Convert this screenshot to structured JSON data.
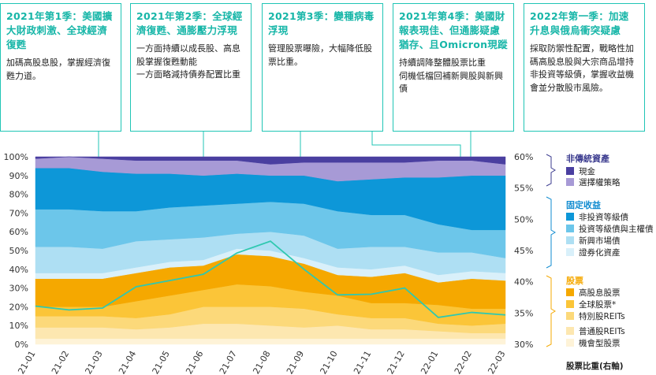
{
  "boxes": [
    {
      "title": "2021年第1季：美國擴大財政刺激、全球經濟復甦",
      "body": "加碼高股息股，掌握經濟復甦力道。"
    },
    {
      "title": "2021年第2季：全球經濟復甦、通膨壓力浮現",
      "body": "一方面持續以成長股、高息股掌握復甦動能\n一方面略減持債券配置比重"
    },
    {
      "title": "2021第3季：變種病毒浮現",
      "body": "管理股票曝險，大幅降低股票比重。"
    },
    {
      "title": "2021年第4季：美國財報表現佳、但通膨疑慮猶存、且Omicron現蹤",
      "body": "持續調降整體股票比重\n伺機低檔回補新興股與新興債"
    },
    {
      "title": "2022年第一季：加速升息與俄烏衝突疑慮",
      "body": "採取防禦性配置，戰略性加碼高股息股與大宗商品增持非投資等級債，掌握收益機會並分散股市風險。"
    }
  ],
  "legend": {
    "groups": [
      {
        "label": "非傳統資產",
        "color": "#3b3b8f",
        "items": [
          {
            "label": "現金",
            "color": "#4a3fa0"
          },
          {
            "label": "選擇權策略",
            "color": "#a79ad6"
          }
        ]
      },
      {
        "label": "固定收益",
        "color": "#0f8bd0",
        "items": [
          {
            "label": "非投資等級債",
            "color": "#0d97d8"
          },
          {
            "label": "投資等級債與主權債",
            "color": "#6cc6ea"
          },
          {
            "label": "新興市場債",
            "color": "#aedff3"
          },
          {
            "label": "證券化資產",
            "color": "#d9f0fa"
          }
        ]
      },
      {
        "label": "股票",
        "color": "#f5a800",
        "items": [
          {
            "label": "高股息股票",
            "color": "#f5a800"
          },
          {
            "label": "全球股票*",
            "color": "#fbc538"
          },
          {
            "label": "特別股REITs",
            "color": "#fcd97a"
          },
          {
            "label": "普通股REITs",
            "color": "#fde7b0"
          },
          {
            "label": "機會型股票",
            "color": "#fef3d8"
          }
        ]
      }
    ],
    "footnote": "股票比重(右軸)"
  },
  "chart_data": {
    "type": "area",
    "stacked": true,
    "categories": [
      "21-01",
      "21-02",
      "21-03",
      "21-04",
      "21-05",
      "21-06",
      "21-07",
      "21-08",
      "21-09",
      "21-10",
      "21-11",
      "21-12",
      "22-01",
      "22-02",
      "22-03"
    ],
    "ylim": [
      0,
      100
    ],
    "yticks": [
      "0%",
      "10%",
      "20%",
      "30%",
      "40%",
      "50%",
      "60%",
      "70%",
      "80%",
      "90%",
      "100%"
    ],
    "series": [
      {
        "name": "機會型股票",
        "color": "#fef3d8",
        "values": [
          3,
          3,
          3,
          3,
          3,
          3,
          3,
          3,
          3,
          3,
          3,
          3,
          3,
          3,
          3
        ]
      },
      {
        "name": "普通股REITs",
        "color": "#fde7b0",
        "values": [
          6,
          6,
          6,
          5,
          6,
          8,
          8,
          7,
          6,
          7,
          5,
          5,
          4,
          3,
          3
        ]
      },
      {
        "name": "特別股REITs",
        "color": "#fcd97a",
        "values": [
          6,
          6,
          6,
          6,
          7,
          9,
          9,
          10,
          10,
          6,
          6,
          6,
          4,
          4,
          5
        ]
      },
      {
        "name": "全球股票*",
        "color": "#fbc538",
        "values": [
          5,
          5,
          5,
          9,
          10,
          9,
          12,
          11,
          9,
          10,
          8,
          8,
          10,
          9,
          8
        ]
      },
      {
        "name": "高股息股票",
        "color": "#f5a800",
        "values": [
          15,
          15,
          15,
          15,
          15,
          13,
          16,
          16,
          15,
          11,
          14,
          16,
          12,
          16,
          15
        ]
      },
      {
        "name": "證券化資產",
        "color": "#d9f0fa",
        "values": [
          3,
          3,
          3,
          3,
          3,
          3,
          3,
          3,
          3,
          4,
          4,
          4,
          4,
          4,
          4
        ]
      },
      {
        "name": "新興市場債",
        "color": "#aedff3",
        "values": [
          14,
          14,
          13,
          14,
          12,
          12,
          8,
          10,
          12,
          10,
          12,
          10,
          12,
          10,
          8
        ]
      },
      {
        "name": "投資等級債與主權債",
        "color": "#6cc6ea",
        "values": [
          20,
          20,
          20,
          16,
          17,
          17,
          16,
          16,
          17,
          20,
          17,
          17,
          15,
          12,
          15
        ]
      },
      {
        "name": "非投資等級債",
        "color": "#0d97d8",
        "values": [
          22,
          22,
          21,
          20,
          18,
          16,
          16,
          14,
          15,
          16,
          19,
          20,
          25,
          29,
          29
        ]
      },
      {
        "name": "選擇權策略",
        "color": "#a79ad6",
        "values": [
          5,
          6,
          7,
          7,
          7,
          8,
          7,
          6,
          7,
          10,
          9,
          8,
          9,
          8,
          6
        ]
      },
      {
        "name": "現金",
        "color": "#4a3fa0",
        "values": [
          1,
          0,
          1,
          2,
          2,
          2,
          2,
          4,
          3,
          3,
          3,
          3,
          2,
          2,
          4
        ]
      }
    ],
    "line": {
      "name": "股票比重(右軸)",
      "color": "#2fc8b0",
      "ylim": [
        30,
        60
      ],
      "yticks": [
        "30%",
        "35%",
        "40%",
        "45%",
        "50%",
        "55%",
        "60%"
      ],
      "values": [
        36.1,
        35.5,
        35.8,
        39.2,
        40.2,
        41.2,
        44.6,
        46.5,
        42.0,
        37.9,
        38.0,
        39.0,
        34.3,
        35.1,
        34.7
      ]
    }
  }
}
